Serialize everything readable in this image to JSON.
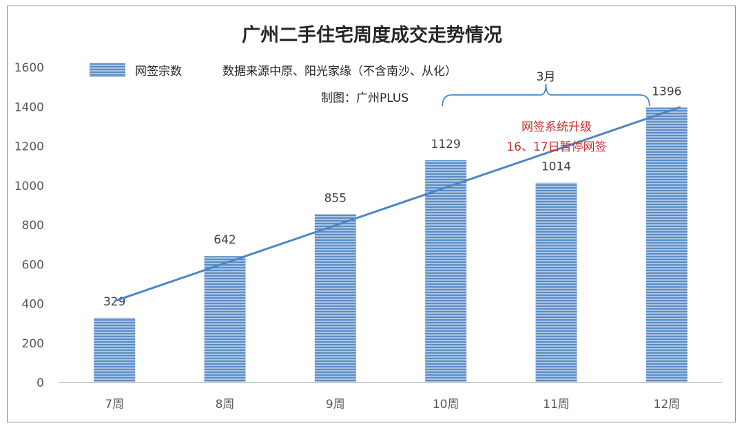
{
  "chart_data": {
    "type": "bar",
    "title": "广州二手住宅周度成交走势情况",
    "categories": [
      "7周",
      "8周",
      "9周",
      "10周",
      "11周",
      "12周"
    ],
    "series": [
      {
        "name": "网签宗数",
        "values": [
          329,
          642,
          855,
          1129,
          1014,
          1396
        ],
        "color": "#6a98c9"
      }
    ],
    "data_labels": [
      "329",
      "642",
      "855",
      "1129",
      "1014",
      "1396"
    ],
    "ylim": [
      0,
      1600
    ],
    "yticks": [
      0,
      200,
      400,
      600,
      800,
      1000,
      1200,
      1400,
      1600
    ],
    "ytick_labels": [
      "0",
      "200",
      "400",
      "600",
      "800",
      "1000",
      "1200",
      "1400",
      "1600"
    ],
    "xlabel": "",
    "ylabel": "",
    "grid": false,
    "legend": "top-left",
    "trendline": {
      "type": "linear",
      "color": "#4a86c5"
    },
    "annotations": {
      "source": "数据来源中原、阳光家缘（不含南沙、从化）",
      "credit": "制图：广州PLUS",
      "bracket_label": "3月",
      "note_line1": "网签系统升级",
      "note_line2": "16、17日暂停网签"
    }
  }
}
